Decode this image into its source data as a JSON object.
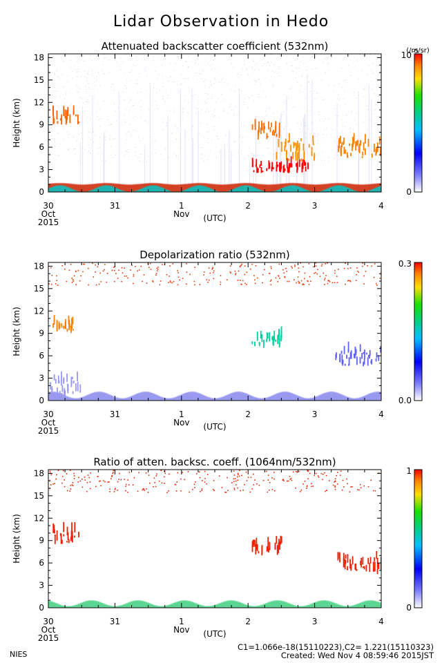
{
  "title": "Lidar Observation in Hedo",
  "footer": {
    "org": "NIES",
    "calib": "C1=1.066e-18(15110223),C2= 1.221(15110323)",
    "created": "Created: Wed Nov  4 08:59:46 2015JST"
  },
  "chart_data": [
    {
      "type": "heatmap",
      "title": "Attenuated backscatter coefficient (532nm)",
      "ylabel": "Height (km)",
      "xunit": "(UTC)",
      "x_ticks": [
        {
          "day": 0,
          "label": "30",
          "sub": "Oct",
          "sub2": "2015"
        },
        {
          "day": 1,
          "label": "31",
          "sub": "",
          "sub2": ""
        },
        {
          "day": 2,
          "label": "1",
          "sub": "Nov",
          "sub2": ""
        },
        {
          "day": 3,
          "label": "2",
          "sub": "",
          "sub2": ""
        },
        {
          "day": 4,
          "label": "3",
          "sub": "",
          "sub2": ""
        },
        {
          "day": 5,
          "label": "4",
          "sub": "",
          "sub2": ""
        }
      ],
      "yticks": [
        0,
        3,
        6,
        9,
        12,
        15,
        18
      ],
      "ylim": [
        0,
        18.5
      ],
      "colorbar": {
        "max_label": "10",
        "max_exp": "-5",
        "min_label": "0",
        "unit": "(/m/sr)"
      },
      "layers": [
        {
          "type": "boundary_layer",
          "height_km": [
            1.0,
            1.2
          ],
          "color": "#cc2200"
        },
        {
          "type": "surface_haze",
          "height_km": [
            0,
            0.9
          ],
          "color": "#00c8c8"
        },
        {
          "type": "cloud",
          "day": [
            0.05,
            0.45
          ],
          "height_km": [
            9.0,
            11.0
          ],
          "color": "#ff6000"
        },
        {
          "type": "cloud",
          "day": [
            3.05,
            3.5
          ],
          "height_km": [
            7.0,
            9.5
          ],
          "color": "#ff7000"
        },
        {
          "type": "cloud",
          "day": [
            3.4,
            4.0
          ],
          "height_km": [
            4.0,
            8.0
          ],
          "color": "#ff9000"
        },
        {
          "type": "cloud",
          "day": [
            4.3,
            5.0
          ],
          "height_km": [
            4.5,
            7.5
          ],
          "color": "#ff8000"
        },
        {
          "type": "low_cloud",
          "day": [
            3.05,
            3.9
          ],
          "height_km": [
            2.5,
            4.0
          ],
          "color": "#ff0000"
        }
      ]
    },
    {
      "type": "heatmap",
      "title": "Depolarization ratio (532nm)",
      "ylabel": "Height (km)",
      "xunit": "(UTC)",
      "x_ticks": [
        {
          "day": 0,
          "label": "30",
          "sub": "Oct",
          "sub2": "2015"
        },
        {
          "day": 1,
          "label": "31",
          "sub": "",
          "sub2": ""
        },
        {
          "day": 2,
          "label": "1",
          "sub": "Nov",
          "sub2": ""
        },
        {
          "day": 3,
          "label": "2",
          "sub": "",
          "sub2": ""
        },
        {
          "day": 4,
          "label": "3",
          "sub": "",
          "sub2": ""
        },
        {
          "day": 5,
          "label": "4",
          "sub": "",
          "sub2": ""
        }
      ],
      "yticks": [
        0,
        3,
        6,
        9,
        12,
        15,
        18
      ],
      "ylim": [
        0,
        18.5
      ],
      "colorbar": {
        "max_label": "0.3",
        "max_exp": "",
        "min_label": "0.0",
        "unit": ""
      },
      "layers": [
        {
          "type": "boundary_layer",
          "height_km": [
            0.3,
            1.2
          ],
          "color": "#8888ee"
        },
        {
          "type": "aerosol_plume",
          "day": [
            0.0,
            0.5
          ],
          "height_km": [
            0.5,
            4.0
          ],
          "color": "#9999ee"
        },
        {
          "type": "cloud",
          "day": [
            0.05,
            0.45
          ],
          "height_km": [
            9.0,
            11.0
          ],
          "color": "#ff8000"
        },
        {
          "type": "cloud",
          "day": [
            3.05,
            3.5
          ],
          "height_km": [
            7.0,
            9.5
          ],
          "color": "#00d0a0"
        },
        {
          "type": "cloud",
          "day": [
            4.3,
            5.0
          ],
          "height_km": [
            4.5,
            7.5
          ],
          "color": "#6060ff"
        },
        {
          "type": "noise",
          "height_km": [
            15.5,
            18.5
          ],
          "color": "#ee3300"
        }
      ]
    },
    {
      "type": "heatmap",
      "title": "Ratio of atten. backsc. coeff. (1064nm/532nm)",
      "ylabel": "Height (km)",
      "xunit": "(UTC)",
      "x_ticks": [
        {
          "day": 0,
          "label": "30",
          "sub": "Oct",
          "sub2": "2015"
        },
        {
          "day": 1,
          "label": "31",
          "sub": "",
          "sub2": ""
        },
        {
          "day": 2,
          "label": "1",
          "sub": "Nov",
          "sub2": ""
        },
        {
          "day": 3,
          "label": "2",
          "sub": "",
          "sub2": ""
        },
        {
          "day": 4,
          "label": "3",
          "sub": "",
          "sub2": ""
        },
        {
          "day": 5,
          "label": "4",
          "sub": "",
          "sub2": ""
        }
      ],
      "yticks": [
        0,
        3,
        6,
        9,
        12,
        15,
        18
      ],
      "ylim": [
        0,
        18.5
      ],
      "colorbar": {
        "max_label": "1",
        "max_exp": "",
        "min_label": "0",
        "unit": ""
      },
      "layers": [
        {
          "type": "boundary_layer",
          "height_km": [
            0.2,
            1.0
          ],
          "color": "#40d080"
        },
        {
          "type": "cloud",
          "day": [
            0.05,
            0.45
          ],
          "height_km": [
            8.5,
            11.0
          ],
          "color": "#ee2200"
        },
        {
          "type": "cloud",
          "day": [
            3.05,
            3.5
          ],
          "height_km": [
            7.0,
            9.5
          ],
          "color": "#ee2200"
        },
        {
          "type": "cloud",
          "day": [
            4.3,
            5.0
          ],
          "height_km": [
            4.5,
            7.5
          ],
          "color": "#ee2200"
        },
        {
          "type": "noise",
          "height_km": [
            15.5,
            18.5
          ],
          "color": "#ee2200"
        }
      ]
    }
  ]
}
